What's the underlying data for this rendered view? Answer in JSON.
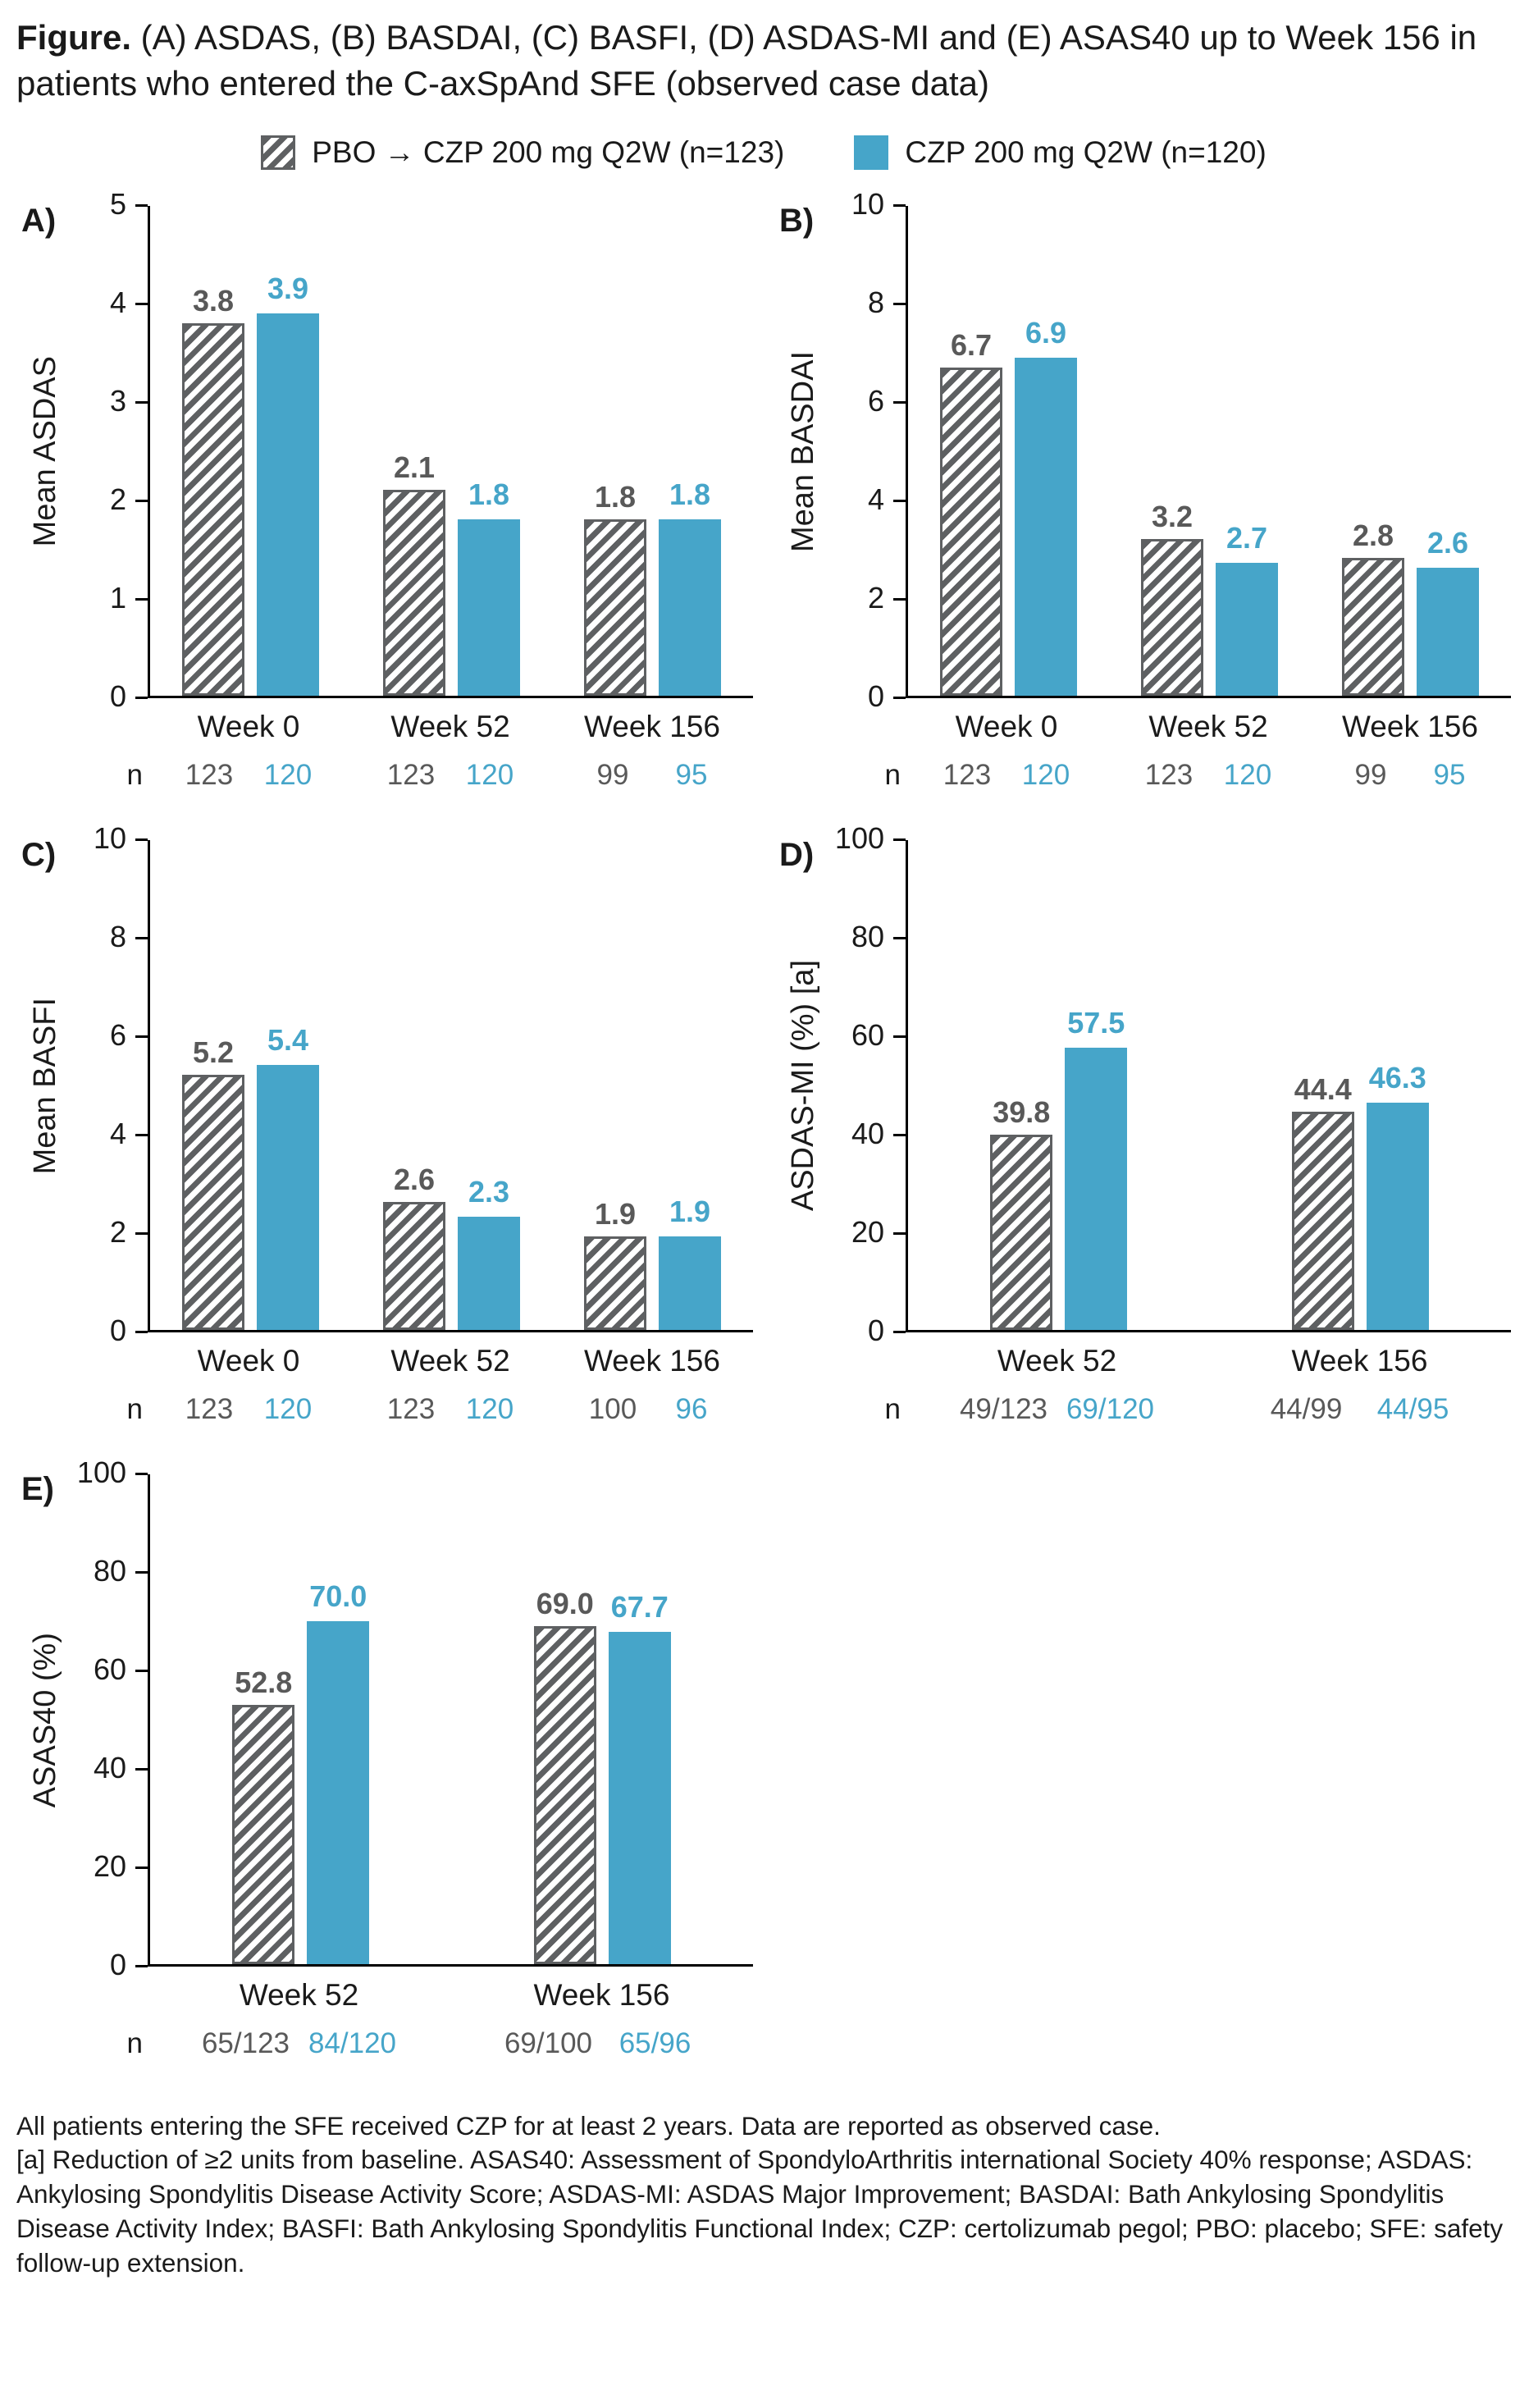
{
  "figure_title": {
    "bold": "Figure.",
    "text": " (A) ASDAS, (B) BASDAI, (C) BASFI, (D) ASDAS-MI and (E) ASAS40 up to Week 156 in patients who entered the C-axSpAnd SFE (observed case data)"
  },
  "legend": {
    "items": [
      {
        "label": "PBO → CZP 200 mg Q2W (n=123)",
        "swatch": "hatched"
      },
      {
        "label": "CZP 200 mg Q2W (n=120)",
        "swatch": "solid-blue"
      }
    ]
  },
  "colors": {
    "czp_blue": "#46A5C9",
    "pbo_gray": "#5E6062",
    "axis": "#000000"
  },
  "chart_data": [
    {
      "type": "bar",
      "panel_label": "A)",
      "ylabel": "Mean ASDAS",
      "ylim": [
        0,
        5
      ],
      "ytick_step": 1,
      "categories": [
        "Week 0",
        "Week 52",
        "Week 156"
      ],
      "series": [
        {
          "name": "PBO → CZP 200 mg Q2W (n=123)",
          "style": "hatched",
          "values": [
            3.8,
            2.1,
            1.8
          ]
        },
        {
          "name": "CZP 200 mg Q2W (n=120)",
          "style": "solid-blue",
          "values": [
            3.9,
            1.8,
            1.8
          ]
        }
      ],
      "n_row": {
        "label": "n",
        "values": [
          [
            "123",
            "120"
          ],
          [
            "123",
            "120"
          ],
          [
            "99",
            "95"
          ]
        ]
      }
    },
    {
      "type": "bar",
      "panel_label": "B)",
      "ylabel": "Mean BASDAI",
      "ylim": [
        0,
        10
      ],
      "ytick_step": 2,
      "categories": [
        "Week 0",
        "Week 52",
        "Week 156"
      ],
      "series": [
        {
          "name": "PBO → CZP 200 mg Q2W (n=123)",
          "style": "hatched",
          "values": [
            6.7,
            3.2,
            2.8
          ]
        },
        {
          "name": "CZP 200 mg Q2W (n=120)",
          "style": "solid-blue",
          "values": [
            6.9,
            2.7,
            2.6
          ]
        }
      ],
      "n_row": {
        "label": "n",
        "values": [
          [
            "123",
            "120"
          ],
          [
            "123",
            "120"
          ],
          [
            "99",
            "95"
          ]
        ]
      }
    },
    {
      "type": "bar",
      "panel_label": "C)",
      "ylabel": "Mean BASFI",
      "ylim": [
        0,
        10
      ],
      "ytick_step": 2,
      "categories": [
        "Week 0",
        "Week 52",
        "Week 156"
      ],
      "series": [
        {
          "name": "PBO → CZP 200 mg Q2W (n=123)",
          "style": "hatched",
          "values": [
            5.2,
            2.6,
            1.9
          ]
        },
        {
          "name": "CZP 200 mg Q2W (n=120)",
          "style": "solid-blue",
          "values": [
            5.4,
            2.3,
            1.9
          ]
        }
      ],
      "n_row": {
        "label": "n",
        "values": [
          [
            "123",
            "120"
          ],
          [
            "123",
            "120"
          ],
          [
            "100",
            "96"
          ]
        ]
      }
    },
    {
      "type": "bar",
      "panel_label": "D)",
      "ylabel": "ASDAS-MI (%) [a]",
      "ylim": [
        0,
        100
      ],
      "ytick_step": 20,
      "categories": [
        "Week 52",
        "Week 156"
      ],
      "series": [
        {
          "name": "PBO → CZP 200 mg Q2W (n=123)",
          "style": "hatched",
          "values": [
            39.8,
            44.4
          ]
        },
        {
          "name": "CZP 200 mg Q2W (n=120)",
          "style": "solid-blue",
          "values": [
            57.5,
            46.3
          ]
        }
      ],
      "n_row": {
        "label": "n",
        "values": [
          [
            "49/123",
            "69/120"
          ],
          [
            "44/99",
            "44/95"
          ]
        ]
      }
    },
    {
      "type": "bar",
      "panel_label": "E)",
      "ylabel": "ASAS40 (%)",
      "ylim": [
        0,
        100
      ],
      "ytick_step": 20,
      "categories": [
        "Week 52",
        "Week 156"
      ],
      "series": [
        {
          "name": "PBO → CZP 200 mg Q2W (n=123)",
          "style": "hatched",
          "values": [
            52.8,
            69.0
          ]
        },
        {
          "name": "CZP 200 mg Q2W (n=120)",
          "style": "solid-blue",
          "values": [
            70.0,
            67.7
          ]
        }
      ],
      "n_row": {
        "label": "n",
        "values": [
          [
            "65/123",
            "84/120"
          ],
          [
            "69/100",
            "65/96"
          ]
        ]
      }
    }
  ],
  "footnotes": [
    "All patients entering the SFE received CZP for at least 2 years. Data are reported as observed case.",
    "[a] Reduction of ≥2 units from baseline. ASAS40: Assessment of SpondyloArthritis international Society 40% response; ASDAS: Ankylosing Spondylitis Disease Activity Score; ASDAS-MI: ASDAS Major Improvement; BASDAI: Bath Ankylosing Spondylitis Disease Activity Index; BASFI: Bath Ankylosing Spondylitis Functional Index; CZP: certolizumab pegol; PBO: placebo; SFE: safety follow-up extension."
  ]
}
